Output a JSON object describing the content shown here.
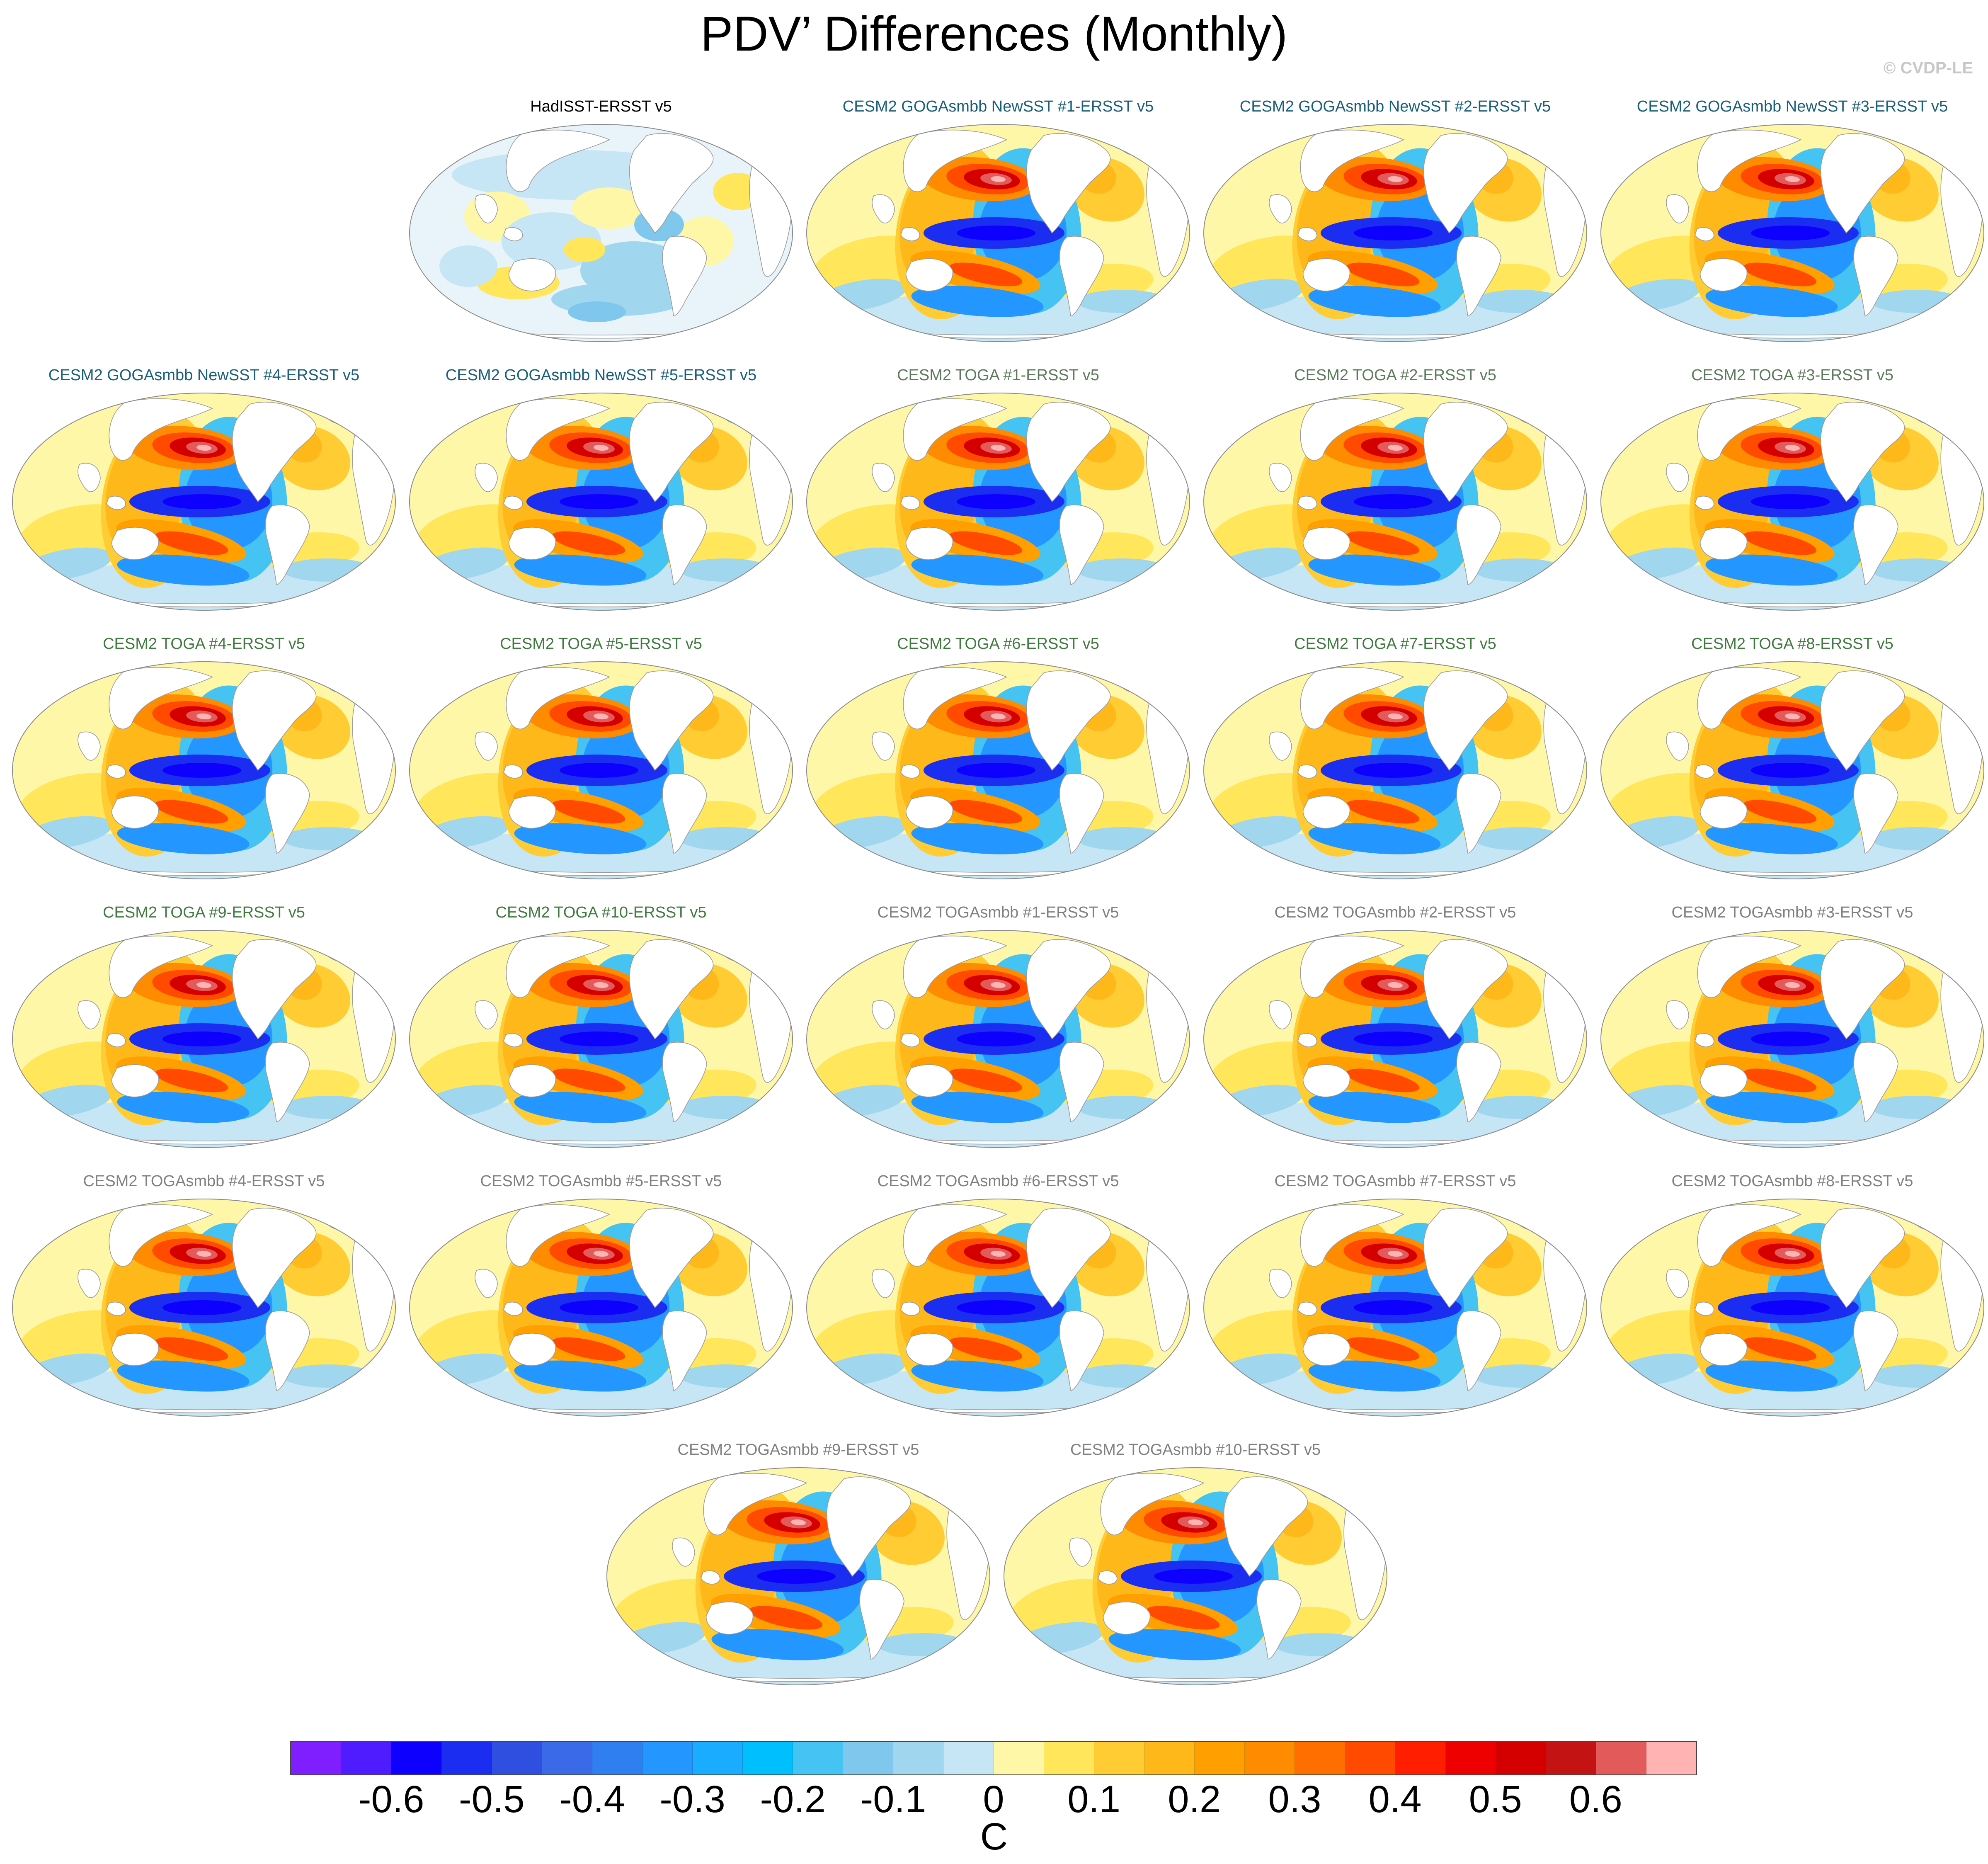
{
  "title": "PDV’ Differences (Monthly)",
  "watermark": "© CVDP-LE",
  "chart_data": {
    "type": "heatmap",
    "title": "PDV’ Differences (Monthly)",
    "variable": "PDV’ SST pattern difference",
    "panels": [
      {
        "label": "HadISST-ERSST v5",
        "color": "#000000",
        "pattern": "observational"
      },
      {
        "label": "CESM2 GOGAsmbb NewSST #1-ERSST v5",
        "color": "#1a5f7a",
        "pattern": "model"
      },
      {
        "label": "CESM2 GOGAsmbb NewSST #2-ERSST v5",
        "color": "#1a5f7a",
        "pattern": "model"
      },
      {
        "label": "CESM2 GOGAsmbb NewSST #3-ERSST v5",
        "color": "#1a5f7a",
        "pattern": "model"
      },
      {
        "label": "CESM2 GOGAsmbb NewSST #4-ERSST v5",
        "color": "#1a5f7a",
        "pattern": "model"
      },
      {
        "label": "CESM2 GOGAsmbb NewSST #5-ERSST v5",
        "color": "#1a5f7a",
        "pattern": "model"
      },
      {
        "label": "CESM2 TOGA #1-ERSST v5",
        "color": "#5d7a5d",
        "pattern": "model"
      },
      {
        "label": "CESM2 TOGA #2-ERSST v5",
        "color": "#5d7a5d",
        "pattern": "model"
      },
      {
        "label": "CESM2 TOGA #3-ERSST v5",
        "color": "#5d7a5d",
        "pattern": "model"
      },
      {
        "label": "CESM2 TOGA #4-ERSST v5",
        "color": "#3f7a3f",
        "pattern": "model"
      },
      {
        "label": "CESM2 TOGA #5-ERSST v5",
        "color": "#3f7a3f",
        "pattern": "model"
      },
      {
        "label": "CESM2 TOGA #6-ERSST v5",
        "color": "#3f7a3f",
        "pattern": "model"
      },
      {
        "label": "CESM2 TOGA #7-ERSST v5",
        "color": "#3f7a3f",
        "pattern": "model"
      },
      {
        "label": "CESM2 TOGA #8-ERSST v5",
        "color": "#3f7a3f",
        "pattern": "model"
      },
      {
        "label": "CESM2 TOGA #9-ERSST v5",
        "color": "#3f7a3f",
        "pattern": "model"
      },
      {
        "label": "CESM2 TOGA #10-ERSST v5",
        "color": "#3f7a3f",
        "pattern": "model"
      },
      {
        "label": "CESM2 TOGAsmbb #1-ERSST v5",
        "color": "#808080",
        "pattern": "model"
      },
      {
        "label": "CESM2 TOGAsmbb #2-ERSST v5",
        "color": "#808080",
        "pattern": "model"
      },
      {
        "label": "CESM2 TOGAsmbb #3-ERSST v5",
        "color": "#808080",
        "pattern": "model"
      },
      {
        "label": "CESM2 TOGAsmbb #4-ERSST v5",
        "color": "#808080",
        "pattern": "model"
      },
      {
        "label": "CESM2 TOGAsmbb #5-ERSST v5",
        "color": "#808080",
        "pattern": "model"
      },
      {
        "label": "CESM2 TOGAsmbb #6-ERSST v5",
        "color": "#808080",
        "pattern": "model"
      },
      {
        "label": "CESM2 TOGAsmbb #7-ERSST v5",
        "color": "#808080",
        "pattern": "model"
      },
      {
        "label": "CESM2 TOGAsmbb #8-ERSST v5",
        "color": "#808080",
        "pattern": "model"
      },
      {
        "label": "CESM2 TOGAsmbb #9-ERSST v5",
        "color": "#808080",
        "pattern": "model"
      },
      {
        "label": "CESM2 TOGAsmbb #10-ERSST v5",
        "color": "#808080",
        "pattern": "model"
      }
    ],
    "colorbar": {
      "units": "C",
      "levels": [
        -0.65,
        -0.6,
        -0.55,
        -0.5,
        -0.45,
        -0.4,
        -0.35,
        -0.3,
        -0.25,
        -0.2,
        -0.15,
        -0.1,
        -0.05,
        0,
        0.05,
        0.1,
        0.15,
        0.2,
        0.25,
        0.3,
        0.35,
        0.4,
        0.45,
        0.5,
        0.55,
        0.6,
        0.65
      ],
      "colors": [
        "#7f1fff",
        "#4f1bff",
        "#0d00ff",
        "#1a2df0",
        "#2f4fe0",
        "#3a6ae8",
        "#2f7ff0",
        "#2496ff",
        "#1aacff",
        "#00bfff",
        "#45c3f3",
        "#7fc7ec",
        "#a1d6ef",
        "#c6e5f5",
        "#fff7a8",
        "#ffe65a",
        "#ffcc33",
        "#ffb81a",
        "#ff9f00",
        "#ff8c00",
        "#ff6f00",
        "#ff4a00",
        "#ff1f00",
        "#ee0000",
        "#d40000",
        "#c41313",
        "#e35a5a",
        "#ffb3b3"
      ],
      "tick_labels": [
        "-0.6",
        "-0.5",
        "-0.4",
        "-0.3",
        "-0.2",
        "-0.1",
        "0",
        "0.1",
        "0.2",
        "0.3",
        "0.4",
        "0.5",
        "0.6"
      ],
      "tick_values": [
        -0.6,
        -0.5,
        -0.4,
        -0.3,
        -0.2,
        -0.1,
        0,
        0.1,
        0.2,
        0.3,
        0.4,
        0.5,
        0.6
      ]
    }
  }
}
